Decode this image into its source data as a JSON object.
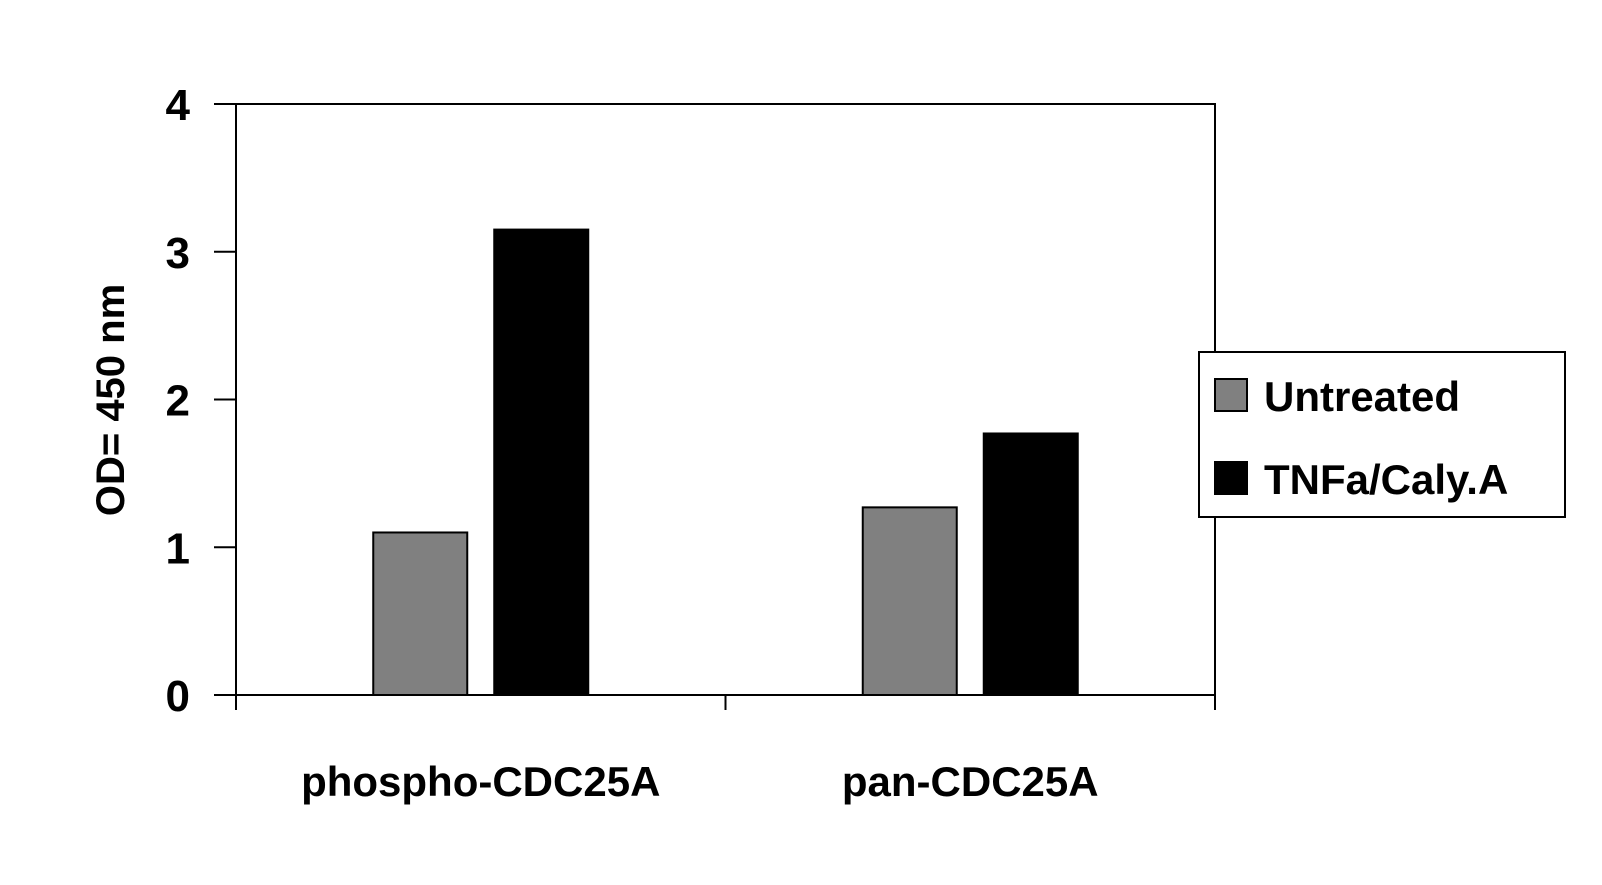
{
  "chart_data": {
    "type": "bar",
    "title": "",
    "xlabel": "",
    "ylabel": "OD= 450 nm",
    "ylim": [
      0,
      4
    ],
    "yticks": [
      0,
      1,
      2,
      3,
      4
    ],
    "categories": [
      "phospho-CDC25A",
      "pan-CDC25A"
    ],
    "series": [
      {
        "name": "Untreated",
        "color": "#808080",
        "values": [
          1.1,
          1.27
        ]
      },
      {
        "name": "TNFa/Caly.A",
        "color": "#000000",
        "values": [
          3.15,
          1.77
        ]
      }
    ],
    "grid": false,
    "legend_position": "right"
  }
}
